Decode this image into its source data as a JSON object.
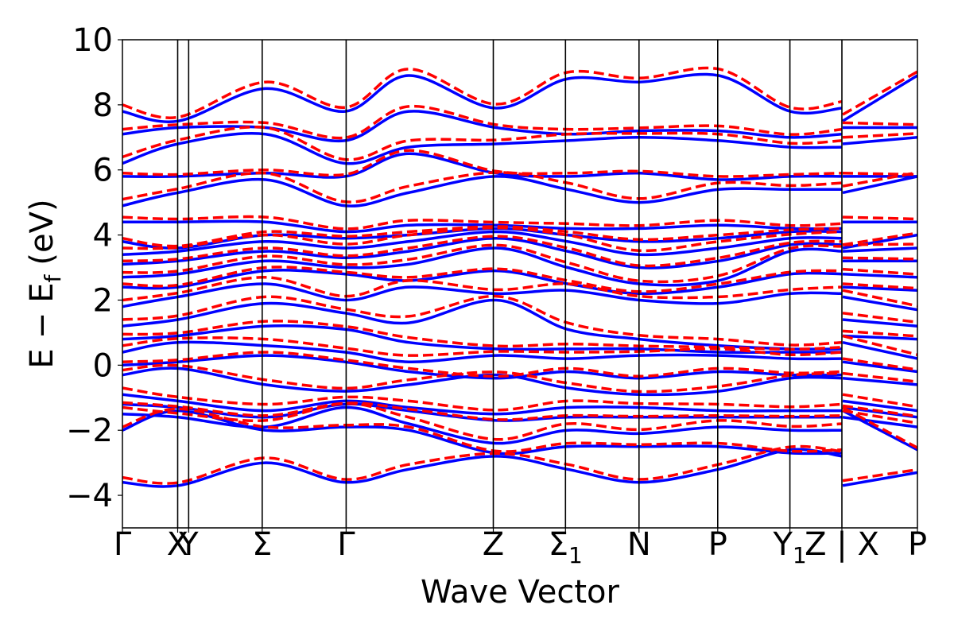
{
  "chart_data": {
    "type": "line",
    "xlabel": "Wave Vector",
    "ylabel": "E − E_f (eV)",
    "ylabel_parts": [
      "E",
      "−",
      "E",
      "f",
      "(eV)"
    ],
    "ylim": [
      -5,
      10
    ],
    "xlim": [
      0,
      1
    ],
    "yticks": [
      -4,
      -2,
      0,
      2,
      4,
      6,
      8,
      10
    ],
    "ytick_labels": [
      "−4",
      "−2",
      "0",
      "2",
      "4",
      "6",
      "8",
      "10"
    ],
    "kpoints": [
      {
        "label": "Γ",
        "x": 0.0
      },
      {
        "label": "X",
        "x": 0.0695
      },
      {
        "label": "Y",
        "x": 0.0833
      },
      {
        "label": "Σ",
        "x": 0.1758
      },
      {
        "label": "Γ",
        "x": 0.2814
      },
      {
        "label": "Z",
        "x": 0.4665
      },
      {
        "label": "Σ",
        "subscript": "1",
        "x": 0.5573
      },
      {
        "label": "N",
        "x": 0.6498
      },
      {
        "label": "P",
        "x": 0.7488
      },
      {
        "label": "Y",
        "subscript": "1",
        "x": 0.8396
      },
      {
        "label": "Z | X",
        "x": 0.905
      },
      {
        "label": "P",
        "x": 1.0
      }
    ],
    "grid": false,
    "series": [
      {
        "style": "solid",
        "color": "#0000ff"
      },
      {
        "style": "dashed",
        "color": "#ff0000"
      }
    ],
    "colors": {
      "dft": "#0000ff",
      "model": "#ff0000",
      "axes": "#000000"
    },
    "bands_dft": [
      [
        [
          0,
          -3.6
        ],
        [
          0.07,
          -3.7
        ],
        [
          0.18,
          -3.0
        ],
        [
          0.28,
          -3.6
        ],
        [
          0.36,
          -3.2
        ],
        [
          0.47,
          -2.8
        ],
        [
          0.56,
          -3.2
        ],
        [
          0.65,
          -3.6
        ],
        [
          0.75,
          -3.2
        ],
        [
          0.84,
          -2.6
        ],
        [
          0.905,
          -2.8
        ],
        [
          0.906,
          -3.7
        ],
        [
          1.0,
          -3.3
        ]
      ],
      [
        [
          0,
          -2.0
        ],
        [
          0.07,
          -1.4
        ],
        [
          0.18,
          -2.0
        ],
        [
          0.28,
          -1.9
        ],
        [
          0.36,
          -2.0
        ],
        [
          0.47,
          -2.7
        ],
        [
          0.56,
          -2.5
        ],
        [
          0.65,
          -2.5
        ],
        [
          0.75,
          -2.5
        ],
        [
          0.84,
          -2.7
        ],
        [
          0.905,
          -2.7
        ],
        [
          0.906,
          -1.4
        ],
        [
          1.0,
          -2.6
        ]
      ],
      [
        [
          0,
          -1.5
        ],
        [
          0.07,
          -1.6
        ],
        [
          0.18,
          -1.9
        ],
        [
          0.28,
          -1.3
        ],
        [
          0.36,
          -1.8
        ],
        [
          0.47,
          -2.4
        ],
        [
          0.56,
          -2.0
        ],
        [
          0.65,
          -2.1
        ],
        [
          0.75,
          -1.9
        ],
        [
          0.84,
          -2.0
        ],
        [
          0.905,
          -2.0
        ],
        [
          0.906,
          -1.6
        ],
        [
          1.0,
          -1.9
        ]
      ],
      [
        [
          0,
          -1.2
        ],
        [
          0.07,
          -1.3
        ],
        [
          0.18,
          -1.6
        ],
        [
          0.28,
          -1.2
        ],
        [
          0.36,
          -1.4
        ],
        [
          0.47,
          -1.7
        ],
        [
          0.56,
          -1.6
        ],
        [
          0.65,
          -1.6
        ],
        [
          0.75,
          -1.6
        ],
        [
          0.84,
          -1.6
        ],
        [
          0.905,
          -1.6
        ],
        [
          0.906,
          -1.3
        ],
        [
          1.0,
          -1.6
        ]
      ],
      [
        [
          0,
          -0.9
        ],
        [
          0.07,
          -1.1
        ],
        [
          0.18,
          -1.4
        ],
        [
          0.28,
          -1.1
        ],
        [
          0.36,
          -1.3
        ],
        [
          0.47,
          -1.5
        ],
        [
          0.56,
          -1.3
        ],
        [
          0.65,
          -1.3
        ],
        [
          0.75,
          -1.4
        ],
        [
          0.84,
          -1.4
        ],
        [
          0.905,
          -1.4
        ],
        [
          0.906,
          -1.1
        ],
        [
          1.0,
          -1.4
        ]
      ],
      [
        [
          0,
          -0.3
        ],
        [
          0.07,
          -0.1
        ],
        [
          0.18,
          -0.6
        ],
        [
          0.28,
          -0.8
        ],
        [
          0.36,
          -0.6
        ],
        [
          0.47,
          -0.3
        ],
        [
          0.56,
          -0.7
        ],
        [
          0.65,
          -0.9
        ],
        [
          0.75,
          -0.8
        ],
        [
          0.84,
          -0.4
        ],
        [
          0.905,
          -0.4
        ],
        [
          0.906,
          -0.4
        ],
        [
          1.0,
          -0.6
        ]
      ],
      [
        [
          0,
          0.0
        ],
        [
          0.07,
          0.1
        ],
        [
          0.18,
          0.3
        ],
        [
          0.28,
          0.1
        ],
        [
          0.36,
          -0.2
        ],
        [
          0.47,
          -0.4
        ],
        [
          0.56,
          -0.2
        ],
        [
          0.65,
          -0.4
        ],
        [
          0.75,
          -0.2
        ],
        [
          0.84,
          -0.3
        ],
        [
          0.905,
          -0.3
        ],
        [
          0.906,
          0.1
        ],
        [
          1.0,
          -0.2
        ]
      ],
      [
        [
          0,
          0.4
        ],
        [
          0.07,
          0.7
        ],
        [
          0.18,
          0.6
        ],
        [
          0.28,
          0.4
        ],
        [
          0.36,
          0.1
        ],
        [
          0.47,
          0.3
        ],
        [
          0.56,
          0.2
        ],
        [
          0.65,
          0.3
        ],
        [
          0.75,
          0.3
        ],
        [
          0.84,
          0.2
        ],
        [
          0.905,
          0.2
        ],
        [
          0.906,
          0.7
        ],
        [
          1.0,
          0.2
        ]
      ],
      [
        [
          0,
          0.8
        ],
        [
          0.07,
          0.9
        ],
        [
          0.18,
          1.2
        ],
        [
          0.28,
          1.1
        ],
        [
          0.36,
          0.7
        ],
        [
          0.47,
          0.5
        ],
        [
          0.56,
          0.5
        ],
        [
          0.65,
          0.5
        ],
        [
          0.75,
          0.4
        ],
        [
          0.84,
          0.4
        ],
        [
          0.905,
          0.4
        ],
        [
          0.906,
          0.9
        ],
        [
          1.0,
          0.8
        ]
      ],
      [
        [
          0,
          1.2
        ],
        [
          0.07,
          1.4
        ],
        [
          0.18,
          1.9
        ],
        [
          0.28,
          1.6
        ],
        [
          0.36,
          1.3
        ],
        [
          0.47,
          2.0
        ],
        [
          0.56,
          1.1
        ],
        [
          0.65,
          0.8
        ],
        [
          0.75,
          0.6
        ],
        [
          0.84,
          0.5
        ],
        [
          0.905,
          0.5
        ],
        [
          0.906,
          1.4
        ],
        [
          1.0,
          1.2
        ]
      ],
      [
        [
          0,
          1.8
        ],
        [
          0.07,
          2.1
        ],
        [
          0.18,
          2.5
        ],
        [
          0.28,
          2.0
        ],
        [
          0.36,
          2.4
        ],
        [
          0.47,
          2.2
        ],
        [
          0.56,
          2.3
        ],
        [
          0.65,
          2.0
        ],
        [
          0.75,
          1.9
        ],
        [
          0.84,
          2.2
        ],
        [
          0.905,
          2.2
        ],
        [
          0.906,
          2.1
        ],
        [
          1.0,
          1.7
        ]
      ],
      [
        [
          0,
          2.4
        ],
        [
          0.07,
          2.4
        ],
        [
          0.18,
          2.9
        ],
        [
          0.28,
          2.8
        ],
        [
          0.36,
          2.6
        ],
        [
          0.47,
          2.9
        ],
        [
          0.56,
          2.5
        ],
        [
          0.65,
          2.2
        ],
        [
          0.75,
          2.4
        ],
        [
          0.84,
          2.8
        ],
        [
          0.905,
          2.8
        ],
        [
          0.906,
          2.4
        ],
        [
          1.0,
          2.3
        ]
      ],
      [
        [
          0,
          2.7
        ],
        [
          0.07,
          2.8
        ],
        [
          0.18,
          3.2
        ],
        [
          0.28,
          3.0
        ],
        [
          0.36,
          3.1
        ],
        [
          0.47,
          3.6
        ],
        [
          0.56,
          3.0
        ],
        [
          0.65,
          2.5
        ],
        [
          0.75,
          2.6
        ],
        [
          0.84,
          3.5
        ],
        [
          0.905,
          3.5
        ],
        [
          0.906,
          2.8
        ],
        [
          1.0,
          2.7
        ]
      ],
      [
        [
          0,
          3.1
        ],
        [
          0.07,
          3.2
        ],
        [
          0.18,
          3.5
        ],
        [
          0.28,
          3.3
        ],
        [
          0.36,
          3.5
        ],
        [
          0.47,
          3.9
        ],
        [
          0.56,
          3.5
        ],
        [
          0.65,
          3.0
        ],
        [
          0.75,
          3.2
        ],
        [
          0.84,
          3.7
        ],
        [
          0.905,
          3.7
        ],
        [
          0.906,
          3.2
        ],
        [
          1.0,
          3.2
        ]
      ],
      [
        [
          0,
          3.4
        ],
        [
          0.07,
          3.5
        ],
        [
          0.18,
          3.8
        ],
        [
          0.28,
          3.6
        ],
        [
          0.36,
          3.8
        ],
        [
          0.47,
          4.1
        ],
        [
          0.56,
          3.8
        ],
        [
          0.65,
          3.4
        ],
        [
          0.75,
          3.6
        ],
        [
          0.84,
          3.9
        ],
        [
          0.905,
          3.9
        ],
        [
          0.906,
          3.5
        ],
        [
          1.0,
          3.6
        ]
      ],
      [
        [
          0,
          3.8
        ],
        [
          0.07,
          3.6
        ],
        [
          0.18,
          4.0
        ],
        [
          0.28,
          3.9
        ],
        [
          0.36,
          4.0
        ],
        [
          0.47,
          4.2
        ],
        [
          0.56,
          4.0
        ],
        [
          0.65,
          3.8
        ],
        [
          0.75,
          3.9
        ],
        [
          0.84,
          4.1
        ],
        [
          0.905,
          4.1
        ],
        [
          0.906,
          3.6
        ],
        [
          1.0,
          4.0
        ]
      ],
      [
        [
          0,
          4.4
        ],
        [
          0.07,
          4.4
        ],
        [
          0.18,
          4.4
        ],
        [
          0.28,
          4.1
        ],
        [
          0.36,
          4.3
        ],
        [
          0.47,
          4.3
        ],
        [
          0.56,
          4.2
        ],
        [
          0.65,
          4.2
        ],
        [
          0.75,
          4.3
        ],
        [
          0.84,
          4.2
        ],
        [
          0.905,
          4.2
        ],
        [
          0.906,
          4.4
        ],
        [
          1.0,
          4.4
        ]
      ],
      [
        [
          0,
          4.9
        ],
        [
          0.07,
          5.3
        ],
        [
          0.18,
          5.7
        ],
        [
          0.28,
          4.9
        ],
        [
          0.36,
          5.3
        ],
        [
          0.47,
          5.8
        ],
        [
          0.56,
          5.4
        ],
        [
          0.65,
          5.0
        ],
        [
          0.75,
          5.4
        ],
        [
          0.84,
          5.4
        ],
        [
          0.905,
          5.4
        ],
        [
          0.906,
          5.3
        ],
        [
          1.0,
          5.8
        ]
      ],
      [
        [
          0,
          5.8
        ],
        [
          0.07,
          5.8
        ],
        [
          0.18,
          5.9
        ],
        [
          0.28,
          5.8
        ],
        [
          0.36,
          6.5
        ],
        [
          0.47,
          5.9
        ],
        [
          0.56,
          5.8
        ],
        [
          0.65,
          5.9
        ],
        [
          0.75,
          5.7
        ],
        [
          0.84,
          5.8
        ],
        [
          0.905,
          5.8
        ],
        [
          0.906,
          5.8
        ],
        [
          1.0,
          5.8
        ]
      ],
      [
        [
          0,
          6.2
        ],
        [
          0.07,
          6.8
        ],
        [
          0.18,
          7.1
        ],
        [
          0.28,
          6.2
        ],
        [
          0.36,
          6.7
        ],
        [
          0.47,
          6.8
        ],
        [
          0.56,
          6.9
        ],
        [
          0.65,
          7.0
        ],
        [
          0.75,
          6.9
        ],
        [
          0.84,
          6.7
        ],
        [
          0.905,
          6.7
        ],
        [
          0.906,
          6.8
        ],
        [
          1.0,
          7.0
        ]
      ],
      [
        [
          0,
          7.1
        ],
        [
          0.07,
          7.3
        ],
        [
          0.18,
          7.3
        ],
        [
          0.28,
          6.9
        ],
        [
          0.36,
          7.8
        ],
        [
          0.47,
          7.3
        ],
        [
          0.56,
          7.1
        ],
        [
          0.65,
          7.2
        ],
        [
          0.75,
          7.2
        ],
        [
          0.84,
          7.0
        ],
        [
          0.905,
          7.1
        ],
        [
          0.906,
          7.3
        ],
        [
          1.0,
          7.3
        ]
      ],
      [
        [
          0,
          7.8
        ],
        [
          0.07,
          7.5
        ],
        [
          0.18,
          8.5
        ],
        [
          0.28,
          7.8
        ],
        [
          0.36,
          8.9
        ],
        [
          0.47,
          7.9
        ],
        [
          0.56,
          8.8
        ],
        [
          0.65,
          8.7
        ],
        [
          0.75,
          8.9
        ],
        [
          0.84,
          7.8
        ],
        [
          0.905,
          7.9
        ],
        [
          0.906,
          7.5
        ],
        [
          1.0,
          8.9
        ]
      ]
    ],
    "band_offsets_model": [
      0.15,
      0.1,
      0.2,
      0.05,
      0.2,
      0.15,
      0.1,
      0.2,
      0.15,
      0.2,
      0.2,
      0.1,
      0.15,
      0.1,
      0.2,
      0.1,
      0.15,
      0.2,
      0.1,
      0.2,
      0.15,
      0.2
    ]
  }
}
